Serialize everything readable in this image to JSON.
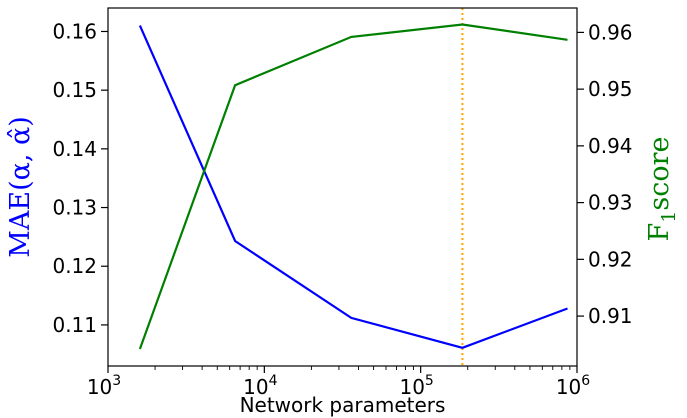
{
  "chart_data": {
    "type": "line",
    "xlabel": "Network parameters",
    "xscale": "log",
    "xlim": [
      1000,
      1000000
    ],
    "x_ticks": [
      1000,
      10000,
      100000,
      1000000
    ],
    "x_tick_labels": [
      {
        "base": "10",
        "exp": "3"
      },
      {
        "base": "10",
        "exp": "4"
      },
      {
        "base": "10",
        "exp": "5"
      },
      {
        "base": "10",
        "exp": "6"
      }
    ],
    "left_axis": {
      "label_main": "MAE(α, α̂)",
      "color": "#0000ff",
      "ylim": [
        0.103,
        0.164
      ],
      "ticks": [
        0.11,
        0.12,
        0.13,
        0.14,
        0.15,
        0.16
      ],
      "tick_labels": [
        "0.11",
        "0.12",
        "0.13",
        "0.14",
        "0.15",
        "0.16"
      ]
    },
    "right_axis": {
      "label_main": "F",
      "label_sub": "1",
      "label_rest": "score",
      "color": "#008000",
      "ylim": [
        0.9012,
        0.9643
      ],
      "ticks": [
        0.91,
        0.92,
        0.93,
        0.94,
        0.95,
        0.96
      ],
      "tick_labels": [
        "0.91",
        "0.92",
        "0.93",
        "0.94",
        "0.95",
        "0.96"
      ]
    },
    "series": [
      {
        "axis": "left",
        "color": "#0000ff",
        "x": [
          1600,
          6500,
          36000,
          185000,
          870000
        ],
        "values": [
          0.161,
          0.1243,
          0.1112,
          0.1061,
          0.1128
        ]
      },
      {
        "axis": "right",
        "color": "#008000",
        "x": [
          1600,
          6500,
          36000,
          185000,
          870000
        ],
        "values": [
          0.9042,
          0.9507,
          0.9592,
          0.9614,
          0.9587
        ]
      }
    ],
    "vline": {
      "x": 185000,
      "color": "#ffa500",
      "style": "dotted"
    }
  }
}
